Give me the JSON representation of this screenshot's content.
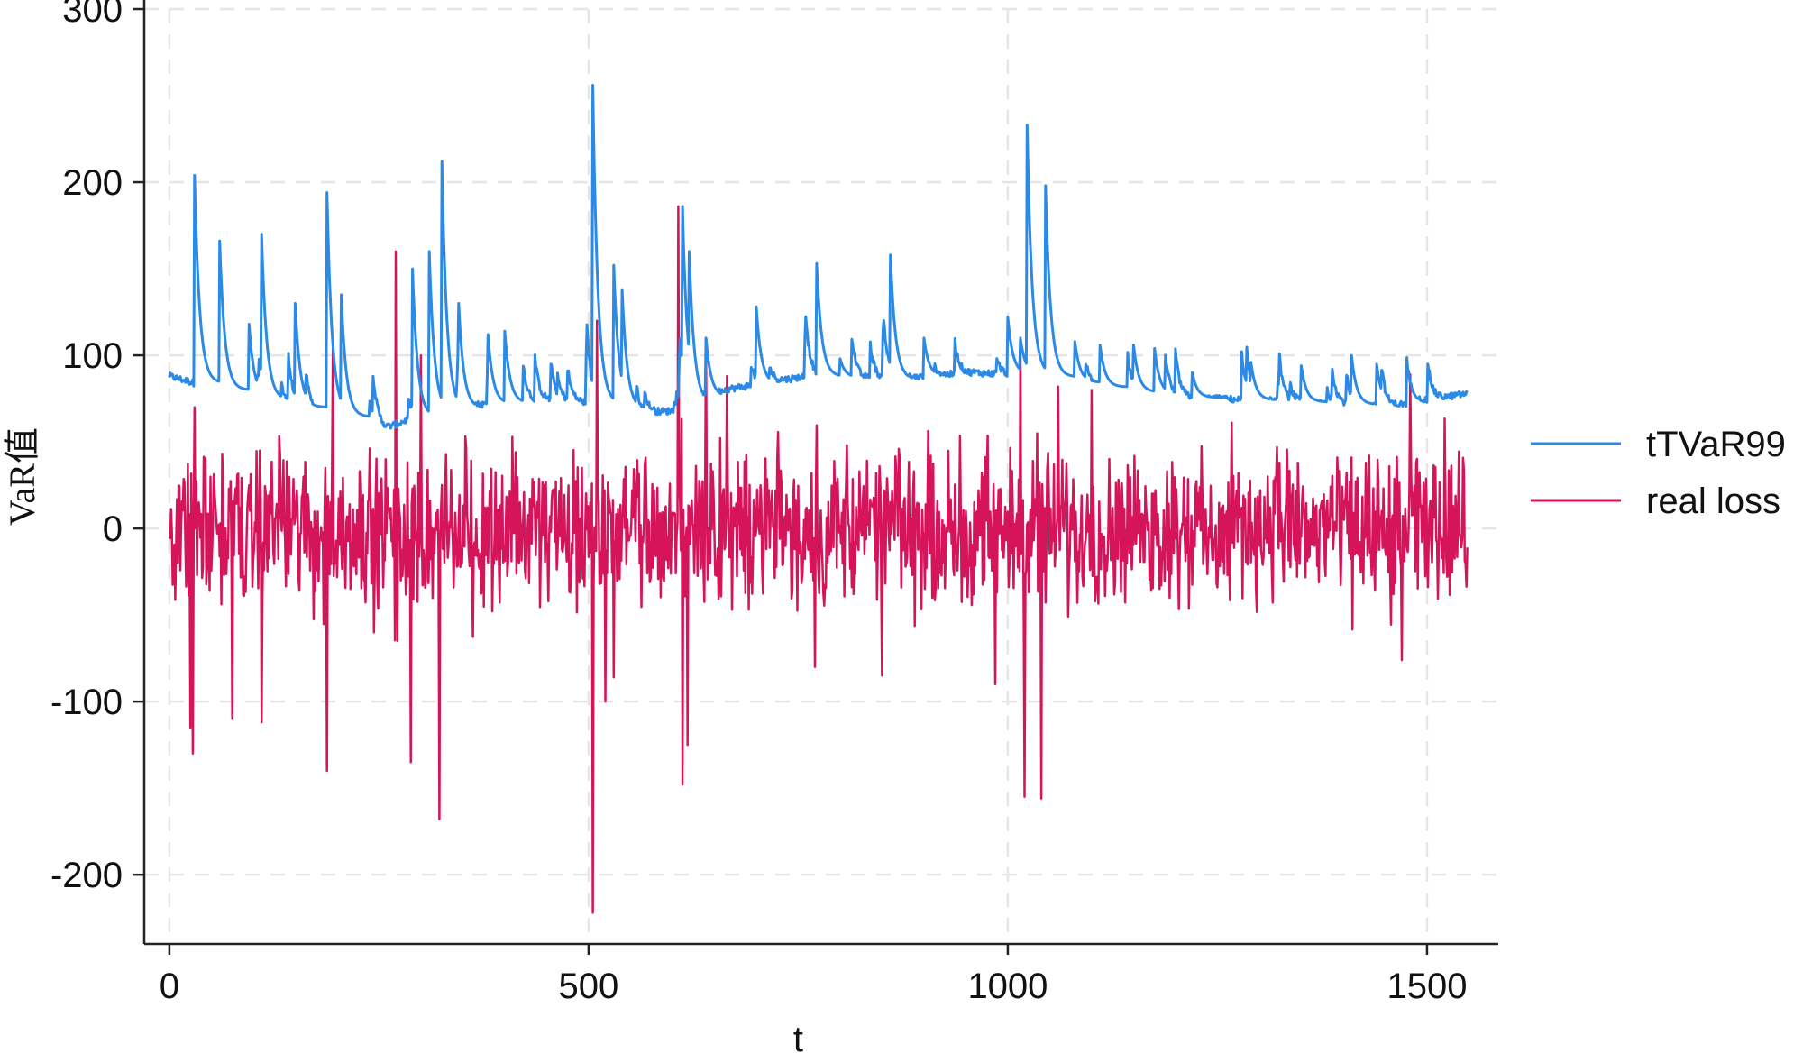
{
  "chart_data": {
    "type": "line",
    "xlabel": "t",
    "ylabel": "VaR值",
    "xlim": [
      -30,
      1585
    ],
    "ylim": [
      -240,
      300
    ],
    "xticks": [
      0,
      500,
      1000,
      1500
    ],
    "yticks": [
      -200,
      -100,
      0,
      100,
      200,
      300
    ],
    "xtick_labels": [
      "0",
      "500",
      "1000",
      "1500"
    ],
    "ytick_labels": [
      "-200",
      "-100",
      "0",
      "100",
      "200",
      "300"
    ],
    "grid": true,
    "legend_position": "right",
    "series": [
      {
        "name": "tTVaR99",
        "color": "#2b8ae6",
        "baseline": [
          [
            0,
            88
          ],
          [
            60,
            80
          ],
          [
            150,
            70
          ],
          [
            230,
            62
          ],
          [
            260,
            58
          ],
          [
            300,
            66
          ],
          [
            380,
            72
          ],
          [
            450,
            74
          ],
          [
            490,
            73
          ],
          [
            530,
            70
          ],
          [
            560,
            66
          ],
          [
            600,
            68
          ],
          [
            660,
            80
          ],
          [
            760,
            88
          ],
          [
            860,
            86
          ],
          [
            960,
            90
          ],
          [
            1040,
            88
          ],
          [
            1130,
            80
          ],
          [
            1200,
            76
          ],
          [
            1300,
            74
          ],
          [
            1400,
            72
          ],
          [
            1450,
            70
          ],
          [
            1500,
            74
          ],
          [
            1548,
            78
          ]
        ],
        "spikes": [
          [
            30,
            204
          ],
          [
            60,
            166
          ],
          [
            95,
            118
          ],
          [
            110,
            170
          ],
          [
            150,
            130
          ],
          [
            188,
            194
          ],
          [
            205,
            135
          ],
          [
            290,
            150
          ],
          [
            310,
            160
          ],
          [
            325,
            212
          ],
          [
            345,
            130
          ],
          [
            380,
            112
          ],
          [
            400,
            114
          ],
          [
            505,
            256
          ],
          [
            530,
            152
          ],
          [
            540,
            138
          ],
          [
            612,
            186
          ],
          [
            620,
            160
          ],
          [
            640,
            110
          ],
          [
            700,
            128
          ],
          [
            772,
            153
          ],
          [
            800,
            98
          ],
          [
            860,
            158
          ],
          [
            900,
            110
          ],
          [
            1000,
            122
          ],
          [
            1015,
            110
          ],
          [
            1023,
            233
          ],
          [
            1045,
            198
          ],
          [
            1080,
            108
          ],
          [
            1110,
            106
          ],
          [
            1150,
            106
          ],
          [
            1175,
            104
          ],
          [
            1220,
            90
          ],
          [
            1290,
            96
          ],
          [
            1350,
            94
          ],
          [
            1410,
            100
          ],
          [
            1440,
            95
          ],
          [
            1480,
            84
          ]
        ]
      },
      {
        "name": "real loss",
        "color": "#d6145a",
        "spikes": [
          [
            25,
            -115
          ],
          [
            28,
            -130
          ],
          [
            30,
            70
          ],
          [
            75,
            -110
          ],
          [
            110,
            -112
          ],
          [
            188,
            -140
          ],
          [
            195,
            108
          ],
          [
            270,
            160
          ],
          [
            272,
            -65
          ],
          [
            288,
            -135
          ],
          [
            300,
            100
          ],
          [
            322,
            -168
          ],
          [
            505,
            -222
          ],
          [
            510,
            120
          ],
          [
            520,
            -100
          ],
          [
            530,
            -86
          ],
          [
            607,
            186
          ],
          [
            612,
            -148
          ],
          [
            618,
            -125
          ],
          [
            640,
            110
          ],
          [
            665,
            88
          ],
          [
            770,
            -80
          ],
          [
            850,
            -85
          ],
          [
            985,
            -90
          ],
          [
            1015,
            110
          ],
          [
            1020,
            -155
          ],
          [
            1040,
            -156
          ],
          [
            1060,
            82
          ],
          [
            1100,
            80
          ],
          [
            1470,
            -76
          ],
          [
            1480,
            89
          ]
        ]
      }
    ]
  }
}
